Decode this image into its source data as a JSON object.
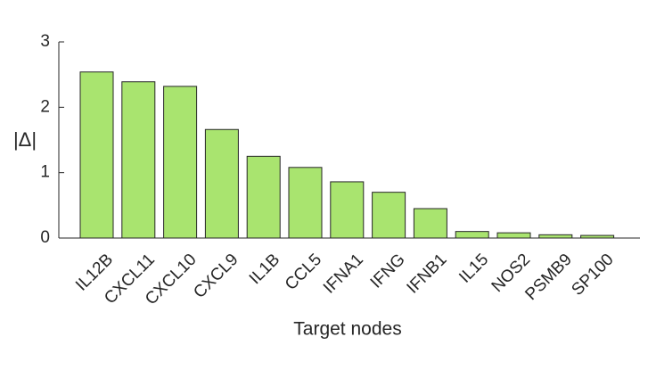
{
  "chart_data": {
    "type": "bar",
    "x_label": "Target nodes",
    "y_label": "|Δ|",
    "categories": [
      "IL12B",
      "CXCL11",
      "CXCL10",
      "CXCL9",
      "IL1B",
      "CCL5",
      "IFNA1",
      "IFNG",
      "IFNB1",
      "IL15",
      "NOS2",
      "PSMB9",
      "SP100"
    ],
    "values": [
      2.54,
      2.39,
      2.32,
      1.66,
      1.25,
      1.08,
      0.86,
      0.7,
      0.45,
      0.1,
      0.08,
      0.05,
      0.04
    ],
    "color": "#a9e46f",
    "ylim": [
      0,
      3
    ],
    "yticks": [
      0,
      1,
      2,
      3
    ],
    "grid": false
  }
}
